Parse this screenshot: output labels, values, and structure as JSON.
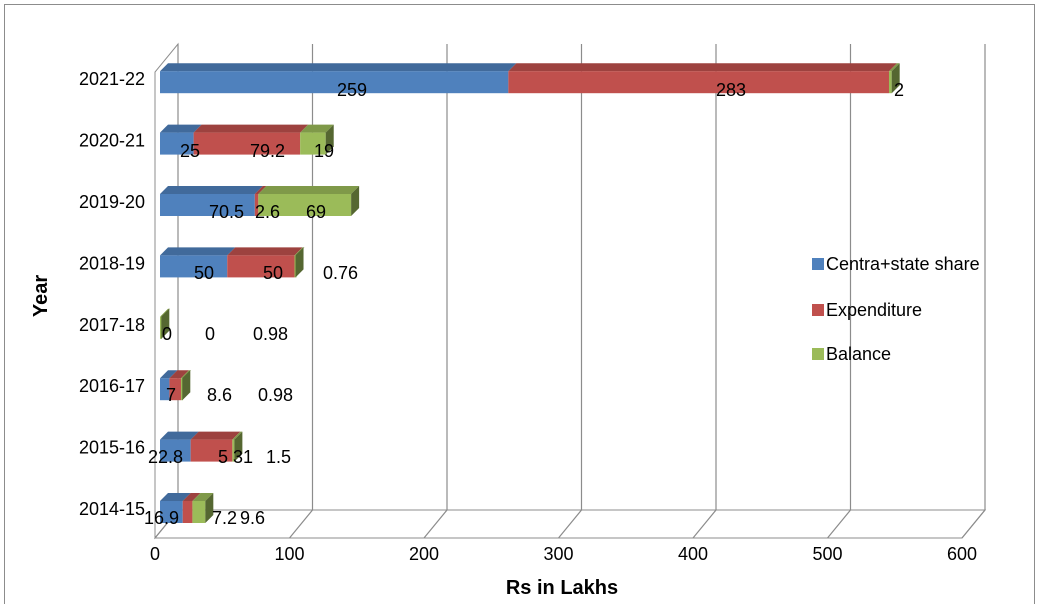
{
  "chart_data": {
    "type": "bar",
    "orientation": "horizontal",
    "stacked": true,
    "style": "3d",
    "xlabel": "Rs in Lakhs",
    "ylabel": "Year",
    "xlim": [
      0,
      600
    ],
    "x_ticks": [
      "0",
      "100",
      "200",
      "300",
      "400",
      "500",
      "600"
    ],
    "grid": true,
    "legend": "right",
    "categories": [
      "2014-15",
      "2015-16",
      "2016-17",
      "2017-18",
      "2018-19",
      "2019-20",
      "2020-21",
      "2021-22"
    ],
    "series": [
      {
        "name": "Centra+state share",
        "color": "#4f81bd",
        "values": [
          16.9,
          22.8,
          7,
          0,
          50,
          70.5,
          25,
          259
        ],
        "labels": [
          "16.9",
          "22.8",
          "7",
          "0",
          "50",
          "70.5",
          "25",
          "259"
        ]
      },
      {
        "name": "Expenditure",
        "color": "#c0504d",
        "values": [
          7.2,
          31,
          8.6,
          0,
          50,
          2.6,
          79.2,
          283
        ],
        "labels": [
          "7.2",
          "5 31",
          "8.6",
          "0",
          "50",
          "2.6",
          "79.2",
          "283"
        ]
      },
      {
        "name": "Balance",
        "color": "#9bbb59",
        "values": [
          9.6,
          1.5,
          0.98,
          0.98,
          0.76,
          69,
          19,
          2
        ],
        "labels": [
          "9.6",
          "1.5",
          "0.98",
          "0.98",
          "0.76",
          "69",
          "19",
          "2"
        ]
      }
    ]
  }
}
